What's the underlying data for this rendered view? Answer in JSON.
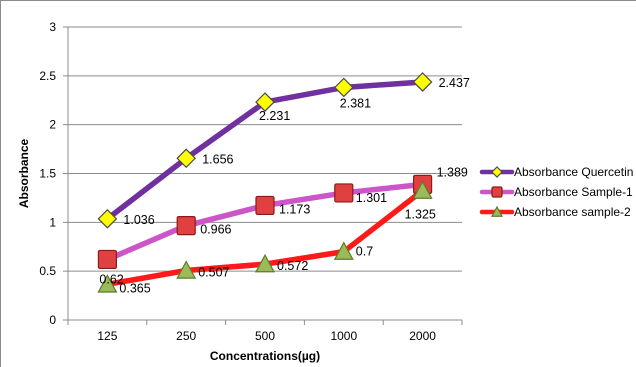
{
  "chart_data": {
    "type": "line",
    "title": "",
    "xlabel": "Concentrations(µg)",
    "ylabel": "Absorbance",
    "categories": [
      "125",
      "250",
      "500",
      "1000",
      "2000"
    ],
    "ylim": [
      0,
      3
    ],
    "yticks": [
      "0",
      "0.5",
      "1",
      "1.5",
      "2",
      "2.5",
      "3"
    ],
    "grid": true,
    "legend_position": "right",
    "series": [
      {
        "name": "Absorbance Quercetin",
        "values": [
          1.036,
          1.656,
          2.231,
          2.381,
          2.437
        ],
        "labels": [
          "1.036",
          "1.656",
          "2.231",
          "2.381",
          "2.437"
        ],
        "line_color": "#7030a0",
        "marker": "diamond",
        "marker_fill": "#ffff00",
        "marker_stroke": "#4a4a4a"
      },
      {
        "name": "Absorbance Sample-1",
        "values": [
          0.62,
          0.966,
          1.173,
          1.301,
          1.389
        ],
        "labels": [
          "0.62",
          "0.966",
          "1.173",
          "1.301",
          "1.389"
        ],
        "line_color": "#cc55c8",
        "marker": "square",
        "marker_fill": "#e04040",
        "marker_stroke": "#8b1a1a"
      },
      {
        "name": "Absorbance sample-2",
        "values": [
          0.365,
          0.507,
          0.572,
          0.7,
          1.325
        ],
        "labels": [
          "0.365",
          "0.507",
          "0.572",
          "0.7",
          "1.325"
        ],
        "line_color": "#ff1a1a",
        "marker": "triangle",
        "marker_fill": "#9bbb59",
        "marker_stroke": "#5e7a2a"
      }
    ]
  }
}
